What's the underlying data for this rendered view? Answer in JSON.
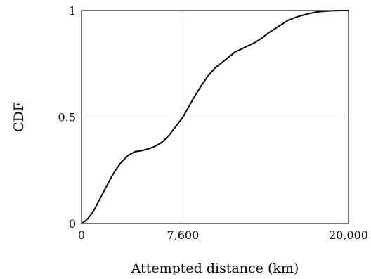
{
  "chart_data": {
    "type": "line",
    "title": "",
    "xlabel": "Attempted distance (km)",
    "ylabel": "CDF",
    "xlim": [
      0,
      20000
    ],
    "ylim": [
      0,
      1
    ],
    "grid": {
      "x": [
        7600
      ],
      "y": [
        0.5
      ]
    },
    "x_ticks": [
      {
        "value": 0,
        "label": "0"
      },
      {
        "value": 7600,
        "label": "7,600"
      },
      {
        "value": 20000,
        "label": "20,000"
      }
    ],
    "y_ticks": [
      {
        "value": 0,
        "label": "0"
      },
      {
        "value": 0.5,
        "label": "0.5"
      },
      {
        "value": 1,
        "label": "1"
      }
    ],
    "series": [
      {
        "color": "#000000",
        "x": [
          0,
          250,
          500,
          750,
          1000,
          1250,
          1500,
          1750,
          2000,
          2300,
          2600,
          3000,
          3500,
          4000,
          4500,
          5000,
          5500,
          6000,
          6500,
          7000,
          7600,
          8000,
          8500,
          9000,
          9500,
          10000,
          10500,
          11000,
          11500,
          12000,
          12500,
          13000,
          13500,
          14000,
          14500,
          15000,
          15500,
          16000,
          16500,
          17000,
          17500,
          18000,
          18500,
          19000,
          19500,
          20000
        ],
        "y": [
          0,
          0.01,
          0.025,
          0.045,
          0.07,
          0.1,
          0.13,
          0.16,
          0.19,
          0.225,
          0.255,
          0.29,
          0.32,
          0.337,
          0.342,
          0.35,
          0.362,
          0.38,
          0.41,
          0.45,
          0.5,
          0.545,
          0.6,
          0.65,
          0.695,
          0.73,
          0.755,
          0.78,
          0.805,
          0.82,
          0.835,
          0.85,
          0.87,
          0.895,
          0.915,
          0.935,
          0.955,
          0.967,
          0.977,
          0.985,
          0.992,
          0.996,
          0.998,
          0.999,
          1,
          1
        ]
      }
    ]
  }
}
